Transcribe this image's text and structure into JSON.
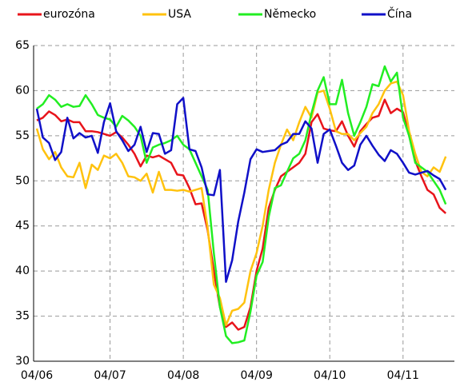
{
  "chart_data": {
    "type": "line",
    "categories": [
      "04/06",
      null,
      null,
      null,
      null,
      null,
      null,
      null,
      null,
      null,
      null,
      null,
      "04/07",
      null,
      null,
      null,
      null,
      null,
      null,
      null,
      null,
      null,
      null,
      null,
      "04/08",
      null,
      null,
      null,
      null,
      null,
      null,
      null,
      null,
      null,
      null,
      null,
      "04/09",
      null,
      null,
      null,
      null,
      null,
      null,
      null,
      null,
      null,
      null,
      null,
      "04/10",
      null,
      null,
      null,
      null,
      null,
      null,
      null,
      null,
      null,
      null,
      null,
      "04/11",
      null,
      null,
      null,
      null,
      null,
      null,
      null
    ],
    "series": [
      {
        "name": "eurozóna",
        "color": "#e8141b",
        "values": [
          56.7,
          57.0,
          57.7,
          57.3,
          56.6,
          56.8,
          56.5,
          56.5,
          55.5,
          55.5,
          55.4,
          55.2,
          55.0,
          55.4,
          54.8,
          54.0,
          53.0,
          51.6,
          52.8,
          52.6,
          52.8,
          52.4,
          52.0,
          50.7,
          50.6,
          49.2,
          47.4,
          47.5,
          44.5,
          40.0,
          36.0,
          33.8,
          34.3,
          33.5,
          33.8,
          36.0,
          40.0,
          42.5,
          47.0,
          49.0,
          50.5,
          51.0,
          51.5,
          52.0,
          53.0,
          56.5,
          57.4,
          55.8,
          55.6,
          55.5,
          56.6,
          55.0,
          53.8,
          55.5,
          56.3,
          57.0,
          57.2,
          59.0,
          57.5,
          58.0,
          57.6,
          55.0,
          52.2,
          50.5,
          49.0,
          48.5,
          47.0,
          46.4
        ]
      },
      {
        "name": "USA",
        "color": "#ffc20e",
        "values": [
          55.8,
          53.5,
          52.4,
          53.2,
          51.5,
          50.5,
          50.4,
          52.0,
          49.2,
          51.8,
          51.2,
          52.8,
          52.5,
          53.0,
          52.0,
          50.5,
          50.4,
          50.0,
          50.8,
          48.7,
          51.0,
          49.0,
          49.0,
          48.9,
          49.0,
          48.8,
          49.0,
          49.2,
          44.8,
          38.5,
          37.0,
          34.0,
          35.6,
          35.8,
          36.5,
          40.0,
          42.0,
          45.0,
          49.0,
          52.0,
          54.0,
          55.7,
          54.5,
          56.5,
          58.2,
          57.0,
          59.8,
          60.0,
          58.0,
          55.5,
          55.2,
          55.2,
          54.5,
          55.3,
          56.0,
          57.5,
          58.5,
          60.0,
          60.8,
          61.0,
          59.5,
          55.5,
          53.0,
          51.0,
          50.5,
          51.5,
          51.0,
          52.7
        ]
      },
      {
        "name": "Německo",
        "color": "#22ee22",
        "values": [
          58.0,
          58.5,
          59.5,
          59.0,
          58.2,
          58.5,
          58.2,
          58.3,
          59.5,
          58.5,
          57.3,
          57.0,
          56.8,
          56.0,
          57.2,
          56.7,
          56.0,
          55.0,
          52.0,
          53.7,
          54.0,
          54.2,
          54.5,
          55.0,
          54.0,
          53.5,
          52.0,
          50.5,
          49.0,
          42.0,
          36.0,
          32.8,
          32.0,
          32.1,
          32.3,
          35.5,
          39.5,
          41.0,
          46.0,
          49.2,
          49.5,
          51.0,
          52.5,
          53.0,
          54.5,
          57.5,
          60.0,
          61.5,
          58.5,
          58.5,
          61.2,
          57.5,
          55.0,
          56.5,
          58.2,
          60.7,
          60.5,
          62.7,
          61.0,
          62.0,
          57.0,
          55.0,
          52.0,
          51.5,
          51.0,
          50.0,
          49.0,
          47.4
        ]
      },
      {
        "name": "Čína",
        "color": "#1010c8",
        "values": [
          58.0,
          54.8,
          54.2,
          52.3,
          53.2,
          57.0,
          54.7,
          55.3,
          54.8,
          55.0,
          53.1,
          56.5,
          58.6,
          55.5,
          54.5,
          53.3,
          54.0,
          56.0,
          53.2,
          55.3,
          55.2,
          53.0,
          53.4,
          58.5,
          59.2,
          53.5,
          53.3,
          51.5,
          48.5,
          48.4,
          51.2,
          38.8,
          41.2,
          45.5,
          48.7,
          52.4,
          53.5,
          53.2,
          53.3,
          53.4,
          54.0,
          54.3,
          55.2,
          55.2,
          56.6,
          55.8,
          52.0,
          55.2,
          55.7,
          53.9,
          52.0,
          51.2,
          51.7,
          54.0,
          55.0,
          53.9,
          52.9,
          52.2,
          53.4,
          53.0,
          52.0,
          50.9,
          50.7,
          50.9,
          51.1,
          50.6,
          50.2,
          49.0
        ]
      }
    ],
    "ylim": [
      30,
      65
    ],
    "yticks": [
      30,
      35,
      40,
      45,
      50,
      55,
      60,
      65
    ],
    "grid": true,
    "legend": "top"
  }
}
